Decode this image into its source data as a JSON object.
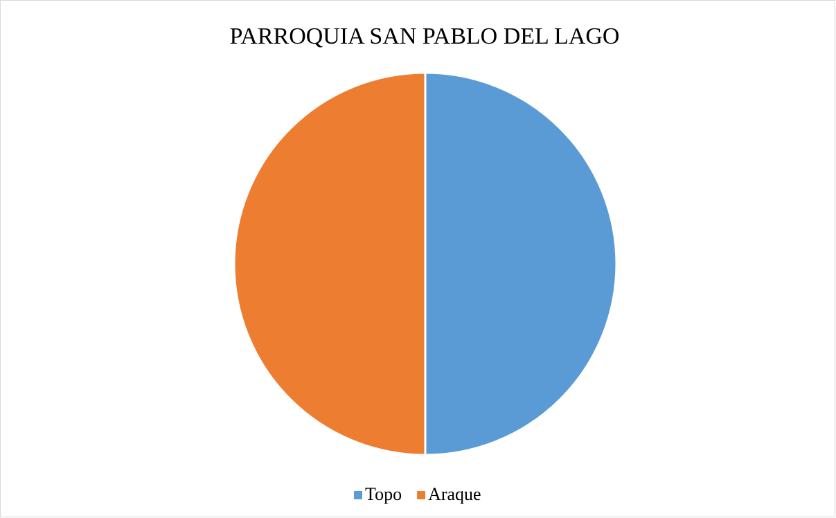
{
  "chart_data": {
    "type": "pie",
    "title": "PARROQUIA SAN PABLO DEL LAGO",
    "categories": [
      "Topo",
      "Araque"
    ],
    "values": [
      50,
      50
    ],
    "colors": [
      "#5b9bd5",
      "#ed7d31"
    ],
    "legend": "bottom"
  }
}
